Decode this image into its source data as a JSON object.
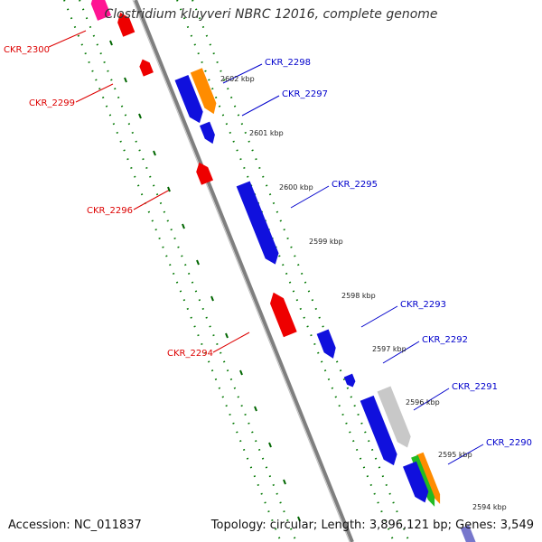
{
  "title": "Clostridium kluyveri NBRC 12016, complete genome",
  "footer": {
    "accession_label": "Accession:",
    "accession": "NC_011837",
    "topology_label": "Topology:",
    "topology": "circular",
    "length_label": "Length:",
    "length": "3,896,121 bp",
    "genes_label": "Genes:",
    "genes": "3,549"
  },
  "colors": {
    "backbone": "#7f7f7f",
    "tick": "#007700",
    "forward_label": "#0000cc",
    "reverse_label": "#dd0000",
    "blue": "#1010dd",
    "red": "#ee0000",
    "magenta": "#ff1493",
    "orange": "#ff8c00",
    "grey": "#c8c8c8",
    "green": "#22bb22"
  },
  "scale": {
    "ticks": [
      {
        "label": "2602 kbp"
      },
      {
        "label": "2601 kbp"
      },
      {
        "label": "2600 kbp"
      },
      {
        "label": "2599 kbp"
      },
      {
        "label": "2598 kbp"
      },
      {
        "label": "2597 kbp"
      },
      {
        "label": "2596 kbp"
      },
      {
        "label": "2595 kbp"
      },
      {
        "label": "2594 kbp"
      }
    ]
  },
  "genes": [
    {
      "id": "CKR_2300",
      "strand": "reverse",
      "color": "magenta"
    },
    {
      "id": "CKR_2299",
      "strand": "reverse",
      "color": "red"
    },
    {
      "id": "CKR_2298",
      "strand": "forward",
      "color": "orange"
    },
    {
      "id": "CKR_2297",
      "strand": "forward",
      "color": "blue"
    },
    {
      "id": "CKR_2296",
      "strand": "reverse",
      "color": "red"
    },
    {
      "id": "CKR_2295",
      "strand": "forward",
      "color": "blue"
    },
    {
      "id": "CKR_2294",
      "strand": "reverse",
      "color": "red"
    },
    {
      "id": "CKR_2293",
      "strand": "forward",
      "color": "blue"
    },
    {
      "id": "CKR_2292",
      "strand": "forward",
      "color": "blue"
    },
    {
      "id": "CKR_2291",
      "strand": "forward",
      "color": "grey"
    },
    {
      "id": "CKR_2290",
      "strand": "forward",
      "color": "green"
    }
  ]
}
